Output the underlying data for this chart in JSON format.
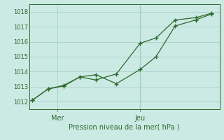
{
  "background_color": "#cceae4",
  "grid_color": "#aad4cc",
  "line_color": "#2d6a2d",
  "xlabel": "Pression niveau de la mer( hPa )",
  "xlabel_color": "#2d6a2d",
  "ylim": [
    1011.5,
    1018.5
  ],
  "yticks": [
    1012,
    1013,
    1014,
    1015,
    1016,
    1017,
    1018
  ],
  "xlim": [
    0,
    12
  ],
  "line1_x": [
    0.2,
    1.2,
    2.2,
    3.2,
    4.2,
    5.5,
    7.0,
    8.0,
    9.2,
    10.5,
    11.5
  ],
  "line1_y": [
    1012.1,
    1012.85,
    1013.05,
    1013.65,
    1013.8,
    1013.2,
    1014.15,
    1015.0,
    1017.05,
    1017.45,
    1017.85
  ],
  "line2_x": [
    0.2,
    1.2,
    2.2,
    3.2,
    4.2,
    5.5,
    7.0,
    8.0,
    9.2,
    10.5,
    11.5
  ],
  "line2_y": [
    1012.1,
    1012.85,
    1013.1,
    1013.65,
    1013.45,
    1013.85,
    1015.9,
    1016.25,
    1017.45,
    1017.6,
    1017.9
  ],
  "vline_x": 7.0,
  "xtick_positions": [
    1.8,
    7.0
  ],
  "xtick_labels": [
    "Mer",
    "Jeu"
  ],
  "ytick_fontsize": 6,
  "xtick_fontsize": 7
}
